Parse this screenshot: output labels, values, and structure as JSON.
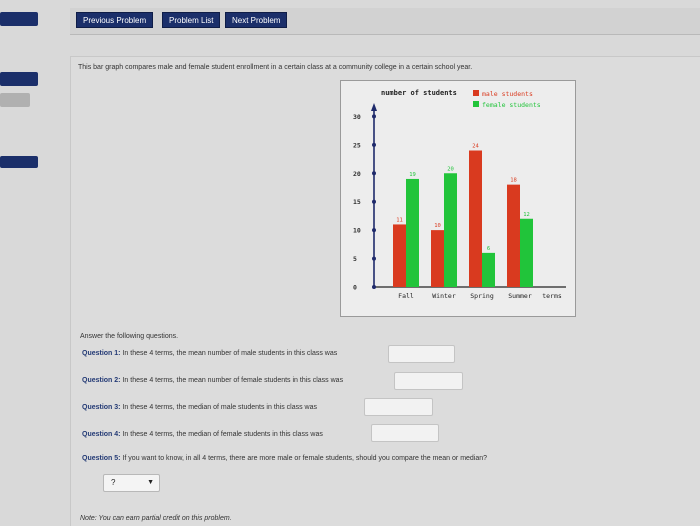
{
  "colors": {
    "nav": "#1b2f6a",
    "male": "#d93a1f",
    "female": "#21c43a",
    "axis": "#1f2a6b"
  },
  "nav": {
    "previous_label": "Previous Problem",
    "list_label": "Problem List",
    "next_label": "Next Problem"
  },
  "intro": "This bar graph compares male and female student enrollment in a certain class at a community college in a certain school year.",
  "chart_data": {
    "type": "bar",
    "title": "number of students",
    "xlabel": "terms",
    "ylabel": "",
    "categories": [
      "Fall",
      "Winter",
      "Spring",
      "Summer"
    ],
    "series": [
      {
        "name": "male students",
        "color": "#d93a1f",
        "values": [
          11,
          10,
          24,
          18
        ]
      },
      {
        "name": "female students",
        "color": "#21c43a",
        "values": [
          19,
          20,
          6,
          12
        ]
      }
    ],
    "yticks": [
      0,
      5,
      10,
      15,
      20,
      25,
      30
    ],
    "ylim": [
      0,
      32
    ],
    "legend": "top-right",
    "grid": false
  },
  "answer_heading": "Answer the following questions.",
  "questions": [
    {
      "label": "Question 1:",
      "text": "In these 4 terms, the mean number of male students in this class was"
    },
    {
      "label": "Question 2:",
      "text": "In these 4 terms, the mean number of female students in this class was"
    },
    {
      "label": "Question 3:",
      "text": "In these 4 terms, the median of male students in this class was"
    },
    {
      "label": "Question 4:",
      "text": "In these 4 terms, the median of female students in this class was"
    },
    {
      "label": "Question 5:",
      "text": "If you want to know, in all 4 terms, there are more male or female students, should you compare the mean or median?"
    }
  ],
  "select": {
    "value": "?",
    "icon": "chevron-down-icon"
  },
  "note": "Note: You can earn partial credit on this problem."
}
